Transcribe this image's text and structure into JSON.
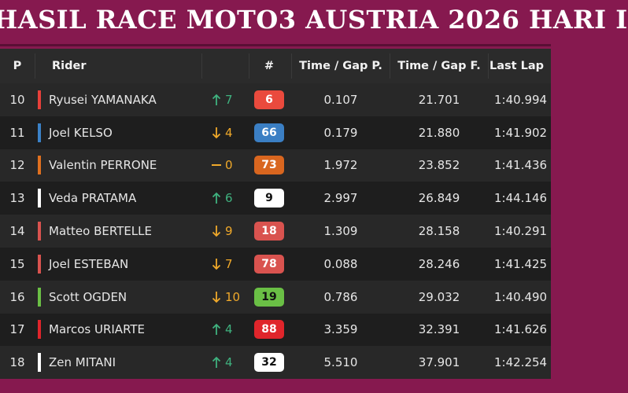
{
  "header": {
    "title": "HASIL RACE MOTO3 AUSTRIA 2026 HARI I"
  },
  "table": {
    "columns": [
      "P",
      "Rider",
      "#",
      "Time / Gap P.",
      "Time / Gap F.",
      "Last Lap"
    ],
    "rows": [
      {
        "position": "10",
        "rider": "Ryusei YAMANAKA",
        "trend": "up",
        "change": "7",
        "number": "6",
        "team_color": "#e8403a",
        "badge_color": "#ea4a3d",
        "badge_text_color": "#ffffff",
        "gap_p": "0.107",
        "gap_f": "21.701",
        "last_lap": "1:40.994"
      },
      {
        "position": "11",
        "rider": "Joel KELSO",
        "trend": "down",
        "change": "4",
        "number": "66",
        "team_color": "#3b82c8",
        "badge_color": "#3b7fc4",
        "badge_text_color": "#ffffff",
        "gap_p": "0.179",
        "gap_f": "21.880",
        "last_lap": "1:41.902"
      },
      {
        "position": "12",
        "rider": "Valentin PERRONE",
        "trend": "same",
        "change": "0",
        "number": "73",
        "team_color": "#e0701f",
        "badge_color": "#d9661f",
        "badge_text_color": "#ffffff",
        "gap_p": "1.972",
        "gap_f": "23.852",
        "last_lap": "1:41.436"
      },
      {
        "position": "13",
        "rider": "Veda PRATAMA",
        "trend": "up",
        "change": "6",
        "number": "9",
        "team_color": "#ffffff",
        "badge_color": "#ffffff",
        "badge_text_color": "#111111",
        "gap_p": "2.997",
        "gap_f": "26.849",
        "last_lap": "1:44.146"
      },
      {
        "position": "14",
        "rider": "Matteo BERTELLE",
        "trend": "down",
        "change": "9",
        "number": "18",
        "team_color": "#d9534f",
        "badge_color": "#d9534f",
        "badge_text_color": "#ffffff",
        "gap_p": "1.309",
        "gap_f": "28.158",
        "last_lap": "1:40.291"
      },
      {
        "position": "15",
        "rider": "Joel ESTEBAN",
        "trend": "down",
        "change": "7",
        "number": "78",
        "team_color": "#d9534f",
        "badge_color": "#d9534f",
        "badge_text_color": "#ffffff",
        "gap_p": "0.088",
        "gap_f": "28.246",
        "last_lap": "1:41.425"
      },
      {
        "position": "16",
        "rider": "Scott OGDEN",
        "trend": "down",
        "change": "10",
        "number": "19",
        "team_color": "#6abf45",
        "badge_color": "#6abf45",
        "badge_text_color": "#111111",
        "gap_p": "0.786",
        "gap_f": "29.032",
        "last_lap": "1:40.490"
      },
      {
        "position": "17",
        "rider": "Marcos URIARTE",
        "trend": "up",
        "change": "4",
        "number": "88",
        "team_color": "#e0252b",
        "badge_color": "#e0252b",
        "badge_text_color": "#ffffff",
        "gap_p": "3.359",
        "gap_f": "32.391",
        "last_lap": "1:41.626"
      },
      {
        "position": "18",
        "rider": "Zen MITANI",
        "trend": "up",
        "change": "4",
        "number": "32",
        "team_color": "#ffffff",
        "badge_color": "#ffffff",
        "badge_text_color": "#111111",
        "gap_p": "5.510",
        "gap_f": "37.901",
        "last_lap": "1:42.254"
      }
    ]
  }
}
